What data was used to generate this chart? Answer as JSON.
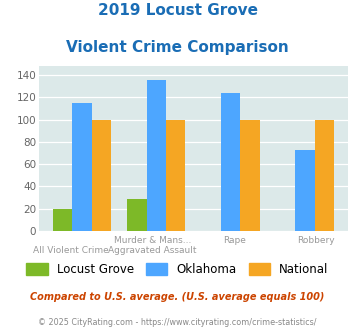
{
  "title_line1": "2019 Locust Grove",
  "title_line2": "Violent Crime Comparison",
  "cat_labels_line1": [
    "",
    "Murder & Mans...",
    "Rape",
    "Robbery"
  ],
  "cat_labels_line2": [
    "All Violent Crime",
    "Aggravated Assault",
    "",
    ""
  ],
  "locust_grove": [
    20,
    29,
    0,
    0
  ],
  "oklahoma": [
    115,
    135,
    124,
    73
  ],
  "national": [
    100,
    100,
    100,
    100
  ],
  "colors_locust_grove": "#7db928",
  "colors_oklahoma": "#4da6ff",
  "colors_national": "#f5a623",
  "ylim": [
    0,
    148
  ],
  "yticks": [
    0,
    20,
    40,
    60,
    80,
    100,
    120,
    140
  ],
  "bg_color": "#dce9e9",
  "title_color": "#1a6db5",
  "footnote1": "Compared to U.S. average. (U.S. average equals 100)",
  "footnote2": "© 2025 CityRating.com - https://www.cityrating.com/crime-statistics/",
  "footnote1_color": "#cc4400",
  "footnote2_color": "#888888"
}
